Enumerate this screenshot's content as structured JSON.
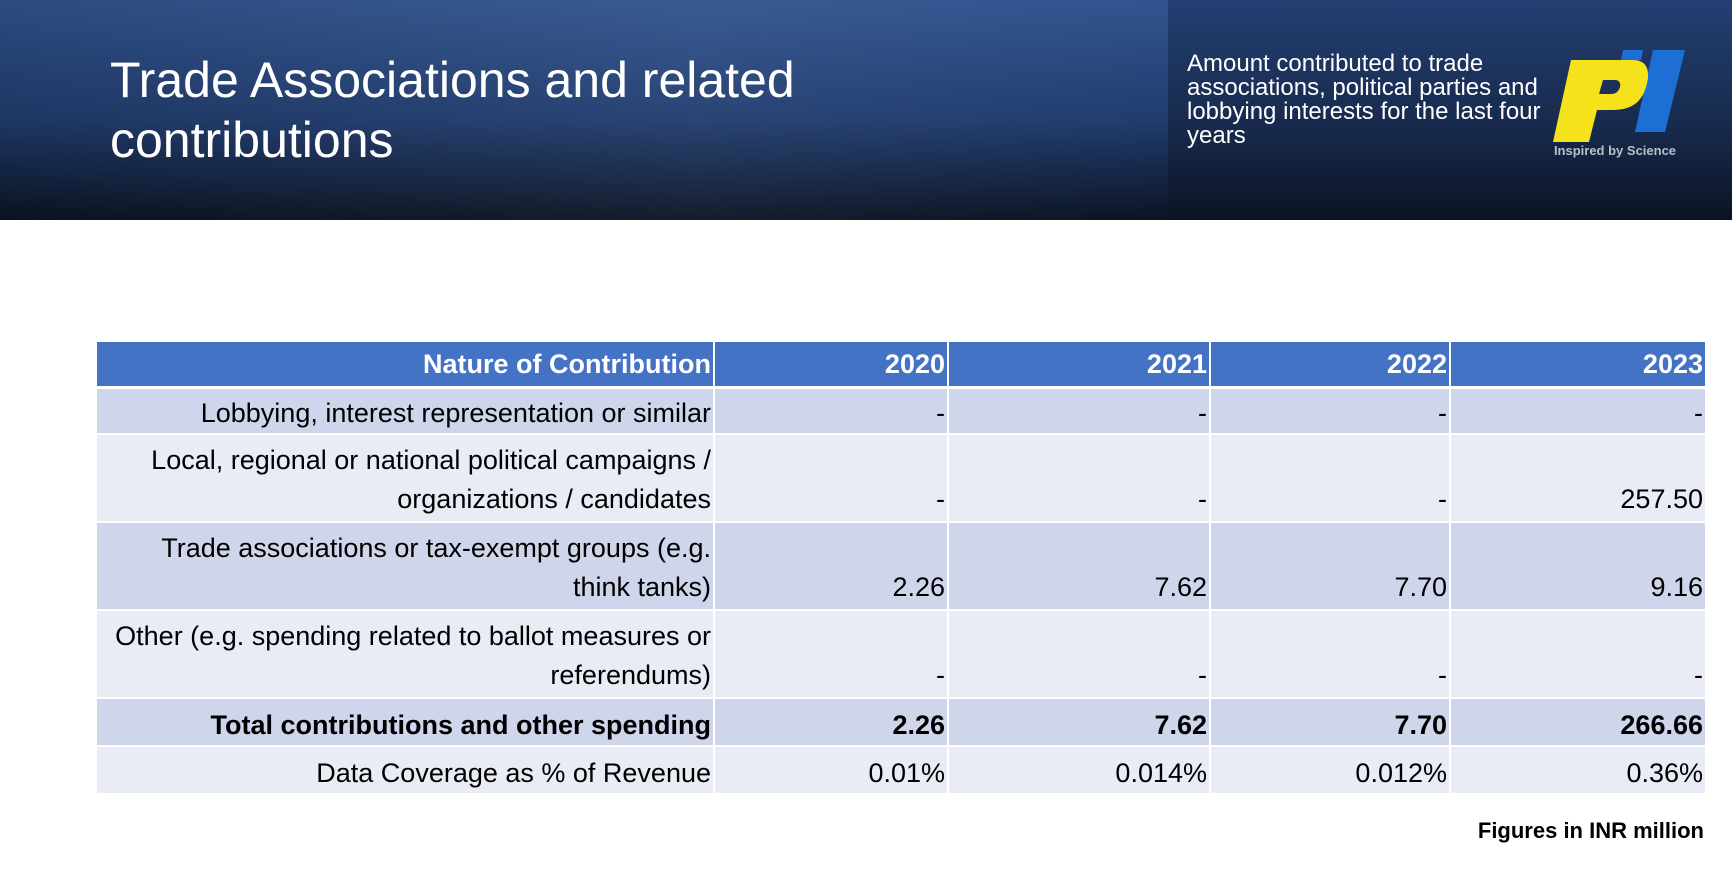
{
  "header": {
    "title": "Trade Associations and related contributions",
    "subtitle": "Amount contributed to trade associations, political parties and lobbying interests for the last four years",
    "logo": {
      "icon": "pi-logo-icon",
      "tagline": "Inspired by Science",
      "colors": {
        "primary": "#f5e21b",
        "secondary": "#1d6fd6"
      }
    }
  },
  "table": {
    "columns": [
      "Nature of Contribution",
      "2020",
      "2021",
      "2022",
      "2023"
    ],
    "rows": [
      {
        "label": "Lobbying, interest representation or similar",
        "values": [
          "-",
          "-",
          "-",
          "-"
        ]
      },
      {
        "label": "Local, regional or national political campaigns / organizations / candidates",
        "values": [
          "-",
          "-",
          "-",
          "257.50"
        ]
      },
      {
        "label": "Trade associations or tax-exempt groups (e.g. think tanks)",
        "values": [
          "2.26",
          "7.62",
          "7.70",
          "9.16"
        ]
      },
      {
        "label": "Other (e.g. spending related to ballot measures or referendums)",
        "values": [
          "-",
          "-",
          "-",
          "-"
        ]
      },
      {
        "label": "Total contributions and other spending",
        "values": [
          "2.26",
          "7.62",
          "7.70",
          "266.66"
        ]
      },
      {
        "label": "Data Coverage as % of Revenue",
        "values": [
          "0.01%",
          "0.014%",
          "0.012%",
          "0.36%"
        ]
      }
    ]
  },
  "footnote": "Figures in INR million",
  "colors": {
    "header_blue": "#2b4a80",
    "table_header": "#4472c4",
    "band_dark": "#cfd5ea",
    "band_light": "#e9ebf5"
  }
}
